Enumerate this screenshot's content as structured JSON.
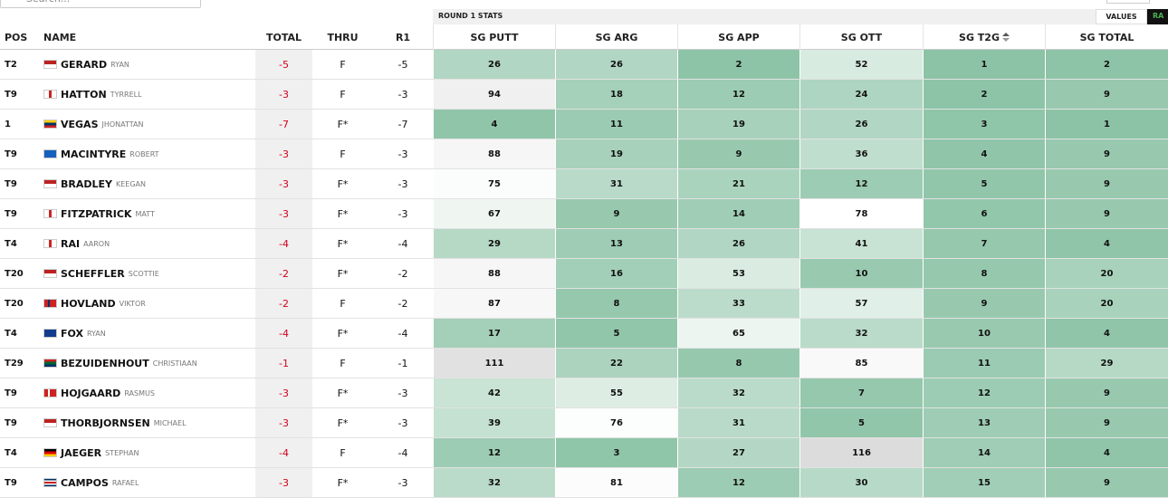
{
  "header": {
    "search": "Search...",
    "stats_group": "ROUND 1 STATS",
    "toggle": [
      "VALUES",
      "RA"
    ]
  },
  "columns": [
    "POS",
    "NAME",
    "TOTAL",
    "THRU",
    "R1",
    "SG PUTT",
    "SG ARG",
    "SG APP",
    "SG OTT",
    "SG T2G",
    "SG TOTAL"
  ],
  "rows": [
    {
      "pos": "T2",
      "last": "GERARD",
      "first": "RYAN",
      "total": -5,
      "thru": "F",
      "r1": -5,
      "stats": [
        26,
        26,
        2,
        52,
        1,
        2
      ]
    },
    {
      "pos": "T9",
      "last": "HATTON",
      "first": "TYRRELL",
      "total": -3,
      "thru": "F",
      "r1": -3,
      "stats": [
        94,
        18,
        12,
        24,
        2,
        9
      ]
    },
    {
      "pos": "1",
      "last": "VEGAS",
      "first": "JHONATTAN",
      "total": -7,
      "thru": "F*",
      "r1": -7,
      "stats": [
        4,
        11,
        19,
        26,
        3,
        1
      ]
    },
    {
      "pos": "T9",
      "last": "MACINTYRE",
      "first": "ROBERT",
      "total": -3,
      "thru": "F",
      "r1": -3,
      "stats": [
        88,
        19,
        9,
        36,
        4,
        9
      ]
    },
    {
      "pos": "T9",
      "last": "BRADLEY",
      "first": "KEEGAN",
      "total": -3,
      "thru": "F*",
      "r1": -3,
      "stats": [
        75,
        31,
        21,
        12,
        5,
        9
      ]
    },
    {
      "pos": "T9",
      "last": "FITZPATRICK",
      "first": "MATT",
      "total": -3,
      "thru": "F*",
      "r1": -3,
      "stats": [
        67,
        9,
        14,
        78,
        6,
        9
      ]
    },
    {
      "pos": "T4",
      "last": "RAI",
      "first": "AARON",
      "total": -4,
      "thru": "F*",
      "r1": -4,
      "stats": [
        29,
        13,
        26,
        41,
        7,
        4
      ]
    },
    {
      "pos": "T20",
      "last": "SCHEFFLER",
      "first": "SCOTTIE",
      "total": -2,
      "thru": "F*",
      "r1": -2,
      "stats": [
        88,
        16,
        53,
        10,
        8,
        20
      ]
    },
    {
      "pos": "T20",
      "last": "HOVLAND",
      "first": "VIKTOR",
      "total": -2,
      "thru": "F",
      "r1": -2,
      "stats": [
        87,
        8,
        33,
        57,
        9,
        20
      ]
    },
    {
      "pos": "T4",
      "last": "FOX",
      "first": "RYAN",
      "total": -4,
      "thru": "F*",
      "r1": -4,
      "stats": [
        17,
        5,
        65,
        32,
        10,
        4
      ]
    },
    {
      "pos": "T29",
      "last": "BEZUIDENHOUT",
      "first": "CHRISTIAAN",
      "total": -1,
      "thru": "F",
      "r1": -1,
      "stats": [
        111,
        22,
        8,
        85,
        11,
        29
      ]
    },
    {
      "pos": "T9",
      "last": "HOJGAARD",
      "first": "RASMUS",
      "total": -3,
      "thru": "F*",
      "r1": -3,
      "stats": [
        42,
        55,
        32,
        7,
        12,
        9
      ]
    },
    {
      "pos": "T9",
      "last": "THORBJORNSEN",
      "first": "MICHAEL",
      "total": -3,
      "thru": "F*",
      "r1": -3,
      "stats": [
        39,
        76,
        31,
        5,
        13,
        9
      ]
    },
    {
      "pos": "T4",
      "last": "JAEGER",
      "first": "STEPHAN",
      "total": -4,
      "thru": "F",
      "r1": -4,
      "stats": [
        12,
        3,
        27,
        116,
        14,
        4
      ]
    },
    {
      "pos": "T9",
      "last": "CAMPOS",
      "first": "RAFAEL",
      "total": -3,
      "thru": "F*",
      "r1": -3,
      "stats": [
        32,
        81,
        12,
        30,
        15,
        9
      ]
    }
  ]
}
